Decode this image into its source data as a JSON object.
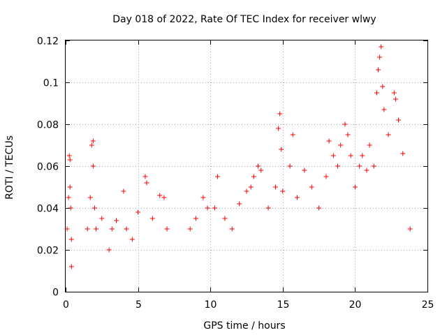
{
  "chart_data": {
    "type": "scatter",
    "title": "Day 018 of 2022, Rate Of TEC Index for receiver wlwy",
    "xlabel": "GPS time / hours",
    "ylabel": "ROTI / TECUs",
    "xlim": [
      0,
      25
    ],
    "ylim": [
      0,
      0.12
    ],
    "xticks": [
      0,
      5,
      10,
      15,
      20,
      25
    ],
    "xtick_labels": [
      "0",
      "5",
      "10",
      "15",
      "20",
      "25"
    ],
    "yticks": [
      0,
      0.02,
      0.04,
      0.06,
      0.08,
      0.1,
      0.12
    ],
    "ytick_labels": [
      "0",
      "0.02",
      "0.04",
      "0.06",
      "0.08",
      "0.1",
      "0.12"
    ],
    "grid": true,
    "marker": "+",
    "color": "#ff0000",
    "series": [
      {
        "x": [
          0.1,
          0.2,
          0.25,
          0.3,
          0.3,
          0.35,
          0.4,
          0.4,
          1.5,
          1.7,
          1.8,
          1.9,
          1.9,
          2.0,
          2.1,
          2.5,
          3.0,
          3.2,
          3.5,
          4.0,
          4.2,
          4.6,
          5.0,
          5.5,
          5.6,
          6.0,
          6.5,
          6.8,
          7.0,
          8.6,
          9.0,
          9.5,
          9.8,
          10.3,
          10.5,
          11.0,
          11.5,
          12.0,
          12.5,
          12.8,
          13.0,
          13.3,
          13.5,
          14.0,
          14.5,
          14.7,
          14.8,
          14.9,
          15.0,
          15.5,
          15.7,
          16.0,
          16.5,
          17.0,
          17.5,
          18.0,
          18.2,
          18.5,
          18.8,
          19.0,
          19.3,
          19.5,
          19.7,
          20.0,
          20.3,
          20.5,
          20.8,
          21.0,
          21.3,
          21.5,
          21.6,
          21.7,
          21.8,
          21.9,
          22.0,
          22.3,
          22.7,
          22.8,
          23.0,
          23.3,
          23.8
        ],
        "y": [
          0.03,
          0.045,
          0.065,
          0.063,
          0.05,
          0.04,
          0.025,
          0.012,
          0.03,
          0.045,
          0.07,
          0.072,
          0.06,
          0.04,
          0.03,
          0.035,
          0.02,
          0.03,
          0.034,
          0.048,
          0.03,
          0.025,
          0.038,
          0.055,
          0.052,
          0.035,
          0.046,
          0.045,
          0.03,
          0.03,
          0.035,
          0.045,
          0.04,
          0.04,
          0.055,
          0.035,
          0.03,
          0.042,
          0.048,
          0.05,
          0.055,
          0.06,
          0.058,
          0.04,
          0.05,
          0.078,
          0.085,
          0.068,
          0.048,
          0.06,
          0.075,
          0.045,
          0.058,
          0.05,
          0.04,
          0.055,
          0.072,
          0.065,
          0.06,
          0.07,
          0.08,
          0.075,
          0.065,
          0.05,
          0.06,
          0.065,
          0.058,
          0.07,
          0.06,
          0.095,
          0.106,
          0.112,
          0.117,
          0.098,
          0.087,
          0.075,
          0.095,
          0.092,
          0.082,
          0.066,
          0.03
        ]
      }
    ]
  }
}
